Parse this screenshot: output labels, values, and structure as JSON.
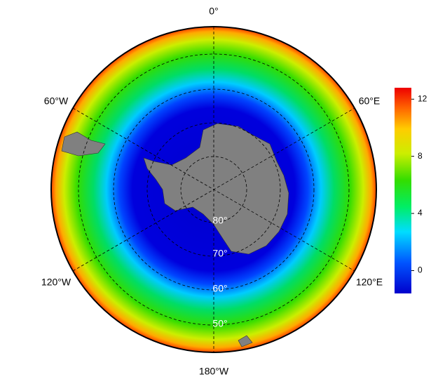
{
  "map": {
    "longitude_labels": [
      "0°",
      "60°E",
      "120°E",
      "180°W",
      "120°W",
      "60°W"
    ],
    "latitude_labels": [
      "80°",
      "70°",
      "60°",
      "50°"
    ],
    "colorbar": {
      "lim": [
        -1.6,
        12.8
      ],
      "ticks": [
        0,
        4,
        8,
        12
      ]
    }
  }
}
